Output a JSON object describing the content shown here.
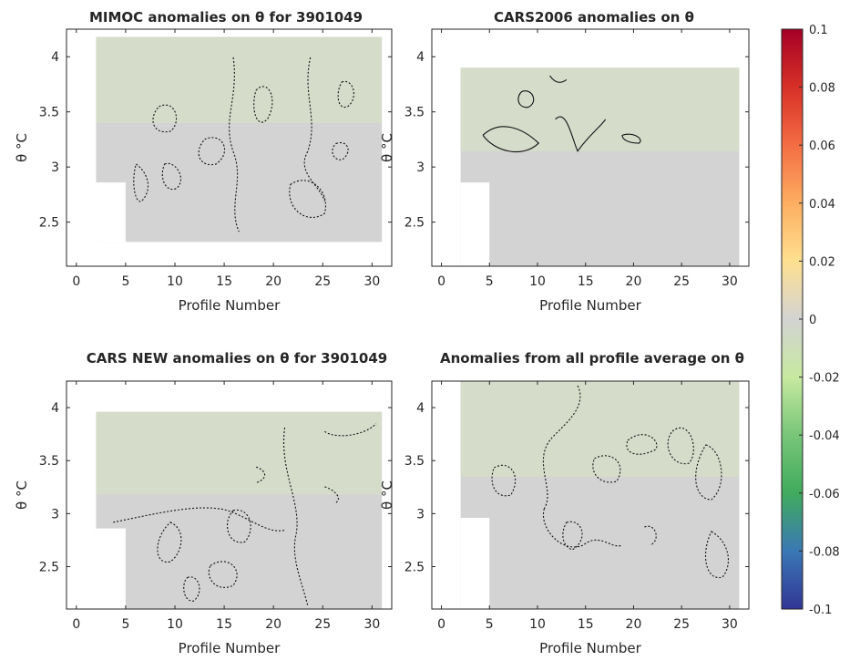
{
  "chart_data": [
    {
      "type": "heatmap",
      "title": "MIMOC anomalies on θ  for 3901049",
      "xlabel": "Profile Number",
      "ylabel": "θ °C",
      "xlim": [
        -1,
        32
      ],
      "ylim": [
        2.1,
        4.25
      ],
      "xticks": [
        0,
        5,
        10,
        15,
        20,
        25,
        30
      ],
      "yticks": [
        2.5,
        3,
        3.5,
        4
      ],
      "fill": "#d3d3d3",
      "data_region": {
        "x": [
          2,
          31
        ],
        "y": [
          2.32,
          4.18
        ]
      },
      "notch": {
        "x": [
          2,
          5
        ],
        "y": [
          2.32,
          2.86
        ]
      },
      "contours": {
        "solid_zero": false,
        "dashed_negative": true
      }
    },
    {
      "type": "heatmap",
      "title": "CARS2006 anomalies on θ",
      "xlabel": "Profile Number",
      "ylabel": "θ °C",
      "xlim": [
        -1,
        32
      ],
      "ylim": [
        2.1,
        4.25
      ],
      "xticks": [
        0,
        5,
        10,
        15,
        20,
        25,
        30
      ],
      "yticks": [
        2.5,
        3,
        3.5,
        4
      ],
      "fill": "#d3d3d3",
      "data_region": {
        "x": [
          2,
          31
        ],
        "y": [
          2.1,
          3.9
        ]
      },
      "notch": {
        "x": [
          2,
          5
        ],
        "y": [
          2.1,
          2.86
        ]
      },
      "contours": {
        "solid_zero": true,
        "dashed_negative": false
      }
    },
    {
      "type": "heatmap",
      "title": "CARS NEW anomalies on θ for 3901049",
      "xlabel": "Profile Number",
      "ylabel": "θ °C",
      "xlim": [
        -1,
        32
      ],
      "ylim": [
        2.1,
        4.25
      ],
      "xticks": [
        0,
        5,
        10,
        15,
        20,
        25,
        30
      ],
      "yticks": [
        2.5,
        3,
        3.5,
        4
      ],
      "fill": "#d3d3d3",
      "data_region": {
        "x": [
          2,
          31
        ],
        "y": [
          2.1,
          3.96
        ]
      },
      "notch": {
        "x": [
          2,
          5
        ],
        "y": [
          2.1,
          2.86
        ]
      },
      "contours": {
        "solid_zero": false,
        "dashed_negative": true
      }
    },
    {
      "type": "heatmap",
      "title": "Anomalies from all profile average on θ",
      "xlabel": "Profile Number",
      "ylabel": "θ °C",
      "xlim": [
        -1,
        32
      ],
      "ylim": [
        2.1,
        4.25
      ],
      "xticks": [
        0,
        5,
        10,
        15,
        20,
        25,
        30
      ],
      "yticks": [
        2.5,
        3,
        3.5,
        4
      ],
      "fill": "#d3d3d3",
      "data_region": {
        "x": [
          2,
          31
        ],
        "y": [
          2.1,
          4.25
        ]
      },
      "notch": {
        "x": [
          2,
          5
        ],
        "y": [
          2.1,
          2.96
        ]
      },
      "contours": {
        "solid_zero": false,
        "dashed_negative": true
      }
    }
  ],
  "colorbar": {
    "min": -0.1,
    "max": 0.1,
    "ticks": [
      "0.1",
      "0.08",
      "0.06",
      "0.04",
      "0.02",
      "0",
      "-0.02",
      "-0.04",
      "-0.06",
      "-0.08",
      "-0.1"
    ],
    "tick_values": [
      0.1,
      0.08,
      0.06,
      0.04,
      0.02,
      0,
      -0.02,
      -0.04,
      -0.06,
      -0.08,
      -0.1
    ],
    "stops": [
      "#a50026",
      "#d73027",
      "#f46d43",
      "#fdae61",
      "#fee090",
      "#d3d3d3",
      "#c7e9a0",
      "#78c679",
      "#41ab5d",
      "#3a78b5",
      "#313695"
    ]
  }
}
